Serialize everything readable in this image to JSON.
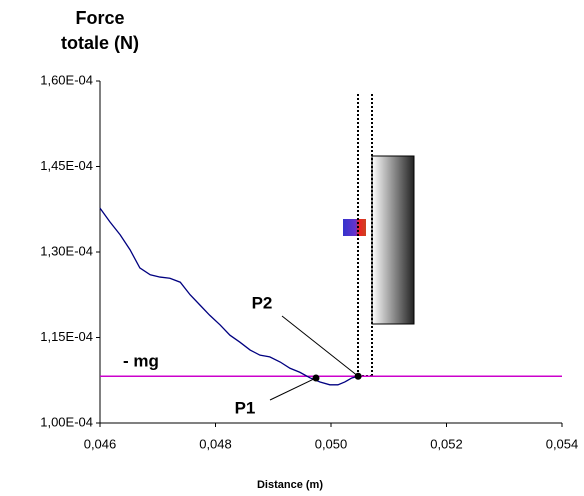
{
  "chart_data": {
    "type": "line",
    "y_label": "Force totale (N)",
    "x_label": "Distance (m)",
    "xlim": [
      0.046,
      0.054
    ],
    "ylim": [
      0.0001,
      0.00016
    ],
    "xticks": [
      {
        "value": 0.046,
        "label": "0,046"
      },
      {
        "value": 0.048,
        "label": "0,048"
      },
      {
        "value": 0.05,
        "label": "0,050"
      },
      {
        "value": 0.052,
        "label": "0,052"
      },
      {
        "value": 0.054,
        "label": "0,054"
      }
    ],
    "yticks": [
      {
        "value": 0.0001,
        "label": "1,00E-04"
      },
      {
        "value": 0.000115,
        "label": "1,15E-04"
      },
      {
        "value": 0.00013,
        "label": "1,30E-04"
      },
      {
        "value": 0.000145,
        "label": "1,45E-04"
      },
      {
        "value": 0.00016,
        "label": "1,60E-04"
      }
    ],
    "series": [
      {
        "color": "#000080",
        "x": [
          0.046,
          0.04617,
          0.04635,
          0.04652,
          0.04669,
          0.04687,
          0.04704,
          0.04721,
          0.04739,
          0.04756,
          0.04773,
          0.0479,
          0.04808,
          0.04825,
          0.04842,
          0.0486,
          0.04877,
          0.04894,
          0.04912,
          0.04929,
          0.04946,
          0.04964,
          0.04981,
          0.04998,
          0.05012,
          0.05024,
          0.05036,
          0.05047
        ],
        "values": [
          0.0001377,
          0.0001353,
          0.000133,
          0.0001304,
          0.0001272,
          0.000126,
          0.0001256,
          0.0001254,
          0.0001247,
          0.0001225,
          0.0001207,
          0.0001189,
          0.0001172,
          0.0001154,
          0.0001142,
          0.0001128,
          0.0001119,
          0.0001116,
          0.0001107,
          0.0001096,
          0.0001089,
          0.0001079,
          0.0001072,
          0.0001067,
          0.0001067,
          0.0001072,
          0.0001079,
          0.0001082
        ]
      }
    ],
    "reference_line": {
      "label": "- mg",
      "value": 0.0001082,
      "color": "#cc00cc"
    },
    "points": [
      {
        "label": "P1",
        "x": 0.04974,
        "y": 0.0001079
      },
      {
        "label": "P2",
        "x": 0.05047,
        "y": 0.0001082
      }
    ]
  }
}
